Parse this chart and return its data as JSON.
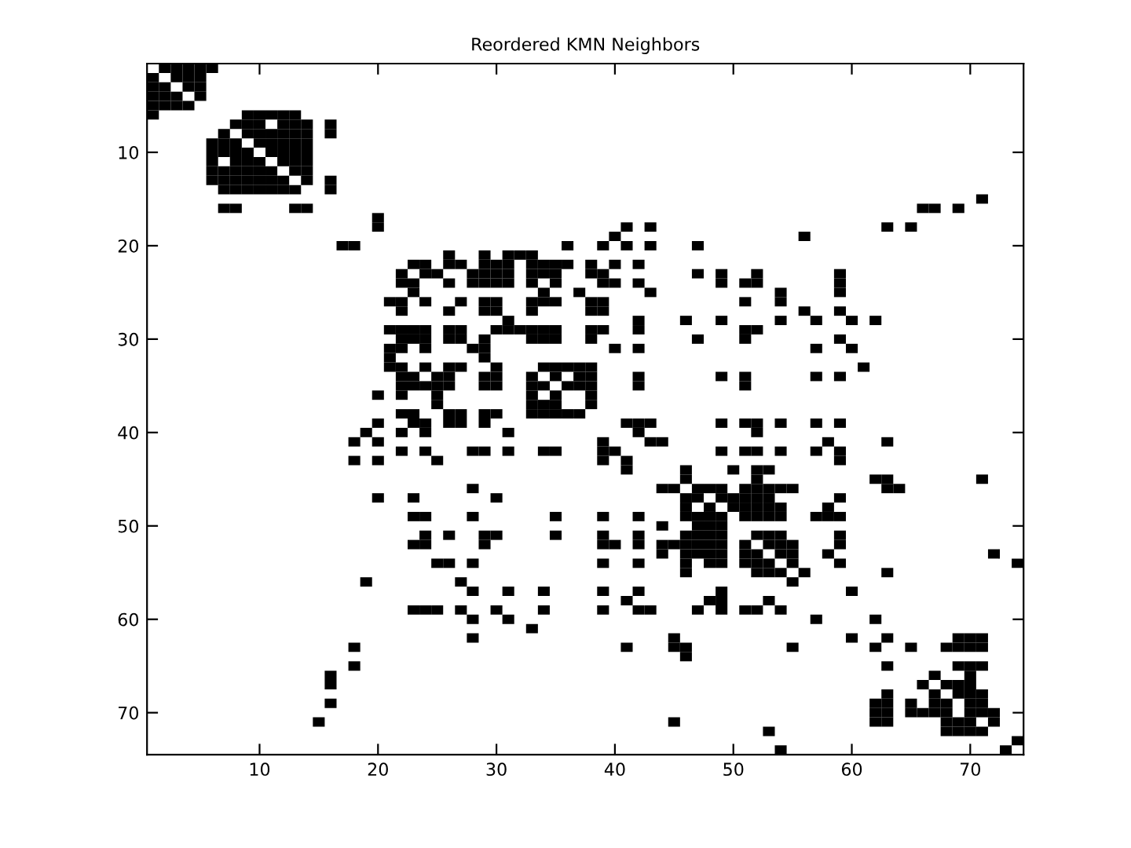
{
  "chart_data": {
    "type": "scatter",
    "title": "Reordered KMN Neighbors",
    "marker": "square",
    "xlim": [
      0.5,
      74.5
    ],
    "ylim": [
      74.5,
      0.5
    ],
    "xticks": [
      10,
      20,
      30,
      40,
      50,
      60,
      70
    ],
    "yticks": [
      10,
      20,
      30,
      40,
      50,
      60,
      70
    ],
    "series": [
      {
        "color": "#000000",
        "x": [
          2,
          3,
          4,
          5,
          6
        ],
        "values": [
          1,
          1,
          1,
          1,
          1
        ]
      },
      {
        "color": "#000000",
        "x": [
          1,
          3,
          4,
          5
        ],
        "values": [
          2,
          2,
          2,
          2
        ]
      },
      {
        "color": "#000000",
        "x": [
          1,
          2,
          4,
          5
        ],
        "values": [
          3,
          3,
          3,
          3
        ]
      },
      {
        "color": "#000000",
        "x": [
          1,
          2,
          3,
          5
        ],
        "values": [
          4,
          4,
          4,
          4
        ]
      },
      {
        "color": "#000000",
        "x": [
          1,
          2,
          3,
          4
        ],
        "values": [
          5,
          5,
          5,
          5
        ]
      },
      {
        "color": "#000000",
        "x": [
          1,
          9,
          10,
          11,
          12,
          13
        ],
        "values": [
          6,
          6,
          6,
          6,
          6,
          6
        ]
      },
      {
        "color": "#000000",
        "x": [
          8,
          9,
          10,
          12,
          13,
          14,
          16
        ],
        "values": [
          7,
          7,
          7,
          7,
          7,
          7,
          7
        ]
      },
      {
        "color": "#000000",
        "x": [
          7,
          9,
          10,
          11,
          12,
          13,
          14,
          16
        ],
        "values": [
          8,
          8,
          8,
          8,
          8,
          8,
          8,
          8
        ]
      },
      {
        "color": "#000000",
        "x": [
          6,
          7,
          8,
          10,
          11,
          12,
          13,
          14
        ],
        "values": [
          9,
          9,
          9,
          9,
          9,
          9,
          9,
          9
        ]
      },
      {
        "color": "#000000",
        "x": [
          6,
          7,
          8,
          9,
          11,
          12,
          13,
          14
        ],
        "values": [
          10,
          10,
          10,
          10,
          10,
          10,
          10,
          10
        ]
      },
      {
        "color": "#000000",
        "x": [
          6,
          8,
          9,
          10,
          12,
          13,
          14
        ],
        "values": [
          11,
          11,
          11,
          11,
          11,
          11,
          11
        ]
      },
      {
        "color": "#000000",
        "x": [
          6,
          7,
          8,
          9,
          10,
          11,
          13,
          14
        ],
        "values": [
          12,
          12,
          12,
          12,
          12,
          12,
          12,
          12
        ]
      },
      {
        "color": "#000000",
        "x": [
          6,
          7,
          8,
          9,
          10,
          11,
          12,
          14,
          16
        ],
        "values": [
          13,
          13,
          13,
          13,
          13,
          13,
          13,
          13,
          13
        ]
      },
      {
        "color": "#000000",
        "x": [
          7,
          8,
          9,
          10,
          11,
          12,
          13,
          16
        ],
        "values": [
          14,
          14,
          14,
          14,
          14,
          14,
          14,
          14
        ]
      },
      {
        "color": "#000000",
        "x": [
          71
        ],
        "values": [
          15
        ]
      },
      {
        "color": "#000000",
        "x": [
          7,
          8,
          13,
          14,
          66,
          67,
          69
        ],
        "values": [
          16,
          16,
          16,
          16,
          16,
          16,
          16
        ]
      },
      {
        "color": "#000000",
        "x": [
          20
        ],
        "values": [
          17
        ]
      },
      {
        "color": "#000000",
        "x": [
          20,
          41,
          43,
          63,
          65
        ],
        "values": [
          18,
          18,
          18,
          18,
          18
        ]
      },
      {
        "color": "#000000",
        "x": [
          40,
          56
        ],
        "values": [
          19,
          19
        ]
      },
      {
        "color": "#000000",
        "x": [
          17,
          18,
          36,
          39,
          41,
          43,
          47
        ],
        "values": [
          20,
          20,
          20,
          20,
          20,
          20,
          20
        ]
      },
      {
        "color": "#000000",
        "x": [
          26,
          29,
          31,
          32,
          33
        ],
        "values": [
          21,
          21,
          21,
          21,
          21
        ]
      },
      {
        "color": "#000000",
        "x": [
          23,
          24,
          26,
          27,
          29,
          30,
          31,
          33,
          34,
          35,
          36,
          38,
          40,
          42
        ],
        "values": [
          22,
          22,
          22,
          22,
          22,
          22,
          22,
          22,
          22,
          22,
          22,
          22,
          22,
          22
        ]
      },
      {
        "color": "#000000",
        "x": [
          22,
          24,
          25,
          28,
          29,
          30,
          31,
          33,
          34,
          35,
          38,
          39,
          47,
          49,
          52,
          59
        ],
        "values": [
          23,
          23,
          23,
          23,
          23,
          23,
          23,
          23,
          23,
          23,
          23,
          23,
          23,
          23,
          23,
          23
        ]
      },
      {
        "color": "#000000",
        "x": [
          22,
          23,
          26,
          28,
          29,
          30,
          31,
          33,
          35,
          39,
          40,
          42,
          49,
          51,
          52,
          59
        ],
        "values": [
          24,
          24,
          24,
          24,
          24,
          24,
          24,
          24,
          24,
          24,
          24,
          24,
          24,
          24,
          24,
          24
        ]
      },
      {
        "color": "#000000",
        "x": [
          23,
          34,
          37,
          43,
          54,
          59
        ],
        "values": [
          25,
          25,
          25,
          25,
          25,
          25
        ]
      },
      {
        "color": "#000000",
        "x": [
          21,
          22,
          24,
          27,
          29,
          30,
          33,
          34,
          35,
          38,
          39,
          51,
          54
        ],
        "values": [
          26,
          26,
          26,
          26,
          26,
          26,
          26,
          26,
          26,
          26,
          26,
          26,
          26
        ]
      },
      {
        "color": "#000000",
        "x": [
          22,
          26,
          29,
          30,
          33,
          38,
          39,
          56,
          59
        ],
        "values": [
          27,
          27,
          27,
          27,
          27,
          27,
          27,
          27,
          27
        ]
      },
      {
        "color": "#000000",
        "x": [
          31,
          42,
          46,
          49,
          54,
          57,
          60,
          62
        ],
        "values": [
          28,
          28,
          28,
          28,
          28,
          28,
          28,
          28
        ]
      },
      {
        "color": "#000000",
        "x": [
          21,
          22,
          23,
          24,
          26,
          27,
          30,
          31,
          32,
          33,
          34,
          35,
          38,
          39,
          42,
          51,
          52
        ],
        "values": [
          29,
          29,
          29,
          29,
          29,
          29,
          29,
          29,
          29,
          29,
          29,
          29,
          29,
          29,
          29,
          29,
          29
        ]
      },
      {
        "color": "#000000",
        "x": [
          22,
          23,
          24,
          26,
          27,
          29,
          33,
          34,
          35,
          38,
          47,
          51,
          59
        ],
        "values": [
          30,
          30,
          30,
          30,
          30,
          30,
          30,
          30,
          30,
          30,
          30,
          30,
          30
        ]
      },
      {
        "color": "#000000",
        "x": [
          21,
          22,
          24,
          28,
          29,
          40,
          42,
          57,
          60
        ],
        "values": [
          31,
          31,
          31,
          31,
          31,
          31,
          31,
          31,
          31
        ]
      },
      {
        "color": "#000000",
        "x": [
          21,
          29
        ],
        "values": [
          32,
          32
        ]
      },
      {
        "color": "#000000",
        "x": [
          21,
          22,
          24,
          26,
          27,
          30,
          34,
          35,
          36,
          37,
          38,
          61
        ],
        "values": [
          33,
          33,
          33,
          33,
          33,
          33,
          33,
          33,
          33,
          33,
          33,
          33
        ]
      },
      {
        "color": "#000000",
        "x": [
          22,
          23,
          25,
          26,
          29,
          30,
          33,
          35,
          37,
          38,
          42,
          49,
          51,
          57,
          59
        ],
        "values": [
          34,
          34,
          34,
          34,
          34,
          34,
          34,
          34,
          34,
          34,
          34,
          34,
          34,
          34,
          34
        ]
      },
      {
        "color": "#000000",
        "x": [
          22,
          23,
          24,
          25,
          26,
          29,
          30,
          33,
          34,
          36,
          37,
          38,
          42,
          51
        ],
        "values": [
          35,
          35,
          35,
          35,
          35,
          35,
          35,
          35,
          35,
          35,
          35,
          35,
          35,
          35
        ]
      },
      {
        "color": "#000000",
        "x": [
          20,
          22,
          25,
          33,
          35,
          38
        ],
        "values": [
          36,
          36,
          36,
          36,
          36,
          36
        ]
      },
      {
        "color": "#000000",
        "x": [
          25,
          33,
          34,
          35,
          38
        ],
        "values": [
          37,
          37,
          37,
          37,
          37
        ]
      },
      {
        "color": "#000000",
        "x": [
          22,
          23,
          26,
          27,
          29,
          30,
          33,
          34,
          35,
          36,
          37
        ],
        "values": [
          38,
          38,
          38,
          38,
          38,
          38,
          38,
          38,
          38,
          38,
          38
        ]
      },
      {
        "color": "#000000",
        "x": [
          20,
          23,
          24,
          26,
          27,
          29,
          41,
          42,
          43,
          49,
          51,
          52,
          54,
          57,
          59
        ],
        "values": [
          39,
          39,
          39,
          39,
          39,
          39,
          39,
          39,
          39,
          39,
          39,
          39,
          39,
          39,
          39
        ]
      },
      {
        "color": "#000000",
        "x": [
          19,
          22,
          24,
          31,
          42,
          52
        ],
        "values": [
          40,
          40,
          40,
          40,
          40,
          40
        ]
      },
      {
        "color": "#000000",
        "x": [
          18,
          20,
          39,
          43,
          44,
          58,
          63
        ],
        "values": [
          41,
          41,
          41,
          41,
          41,
          41,
          41
        ]
      },
      {
        "color": "#000000",
        "x": [
          22,
          24,
          28,
          29,
          31,
          34,
          35,
          39,
          40,
          49,
          51,
          52,
          54,
          57,
          59
        ],
        "values": [
          42,
          42,
          42,
          42,
          42,
          42,
          42,
          42,
          42,
          42,
          42,
          42,
          42,
          42,
          42
        ]
      },
      {
        "color": "#000000",
        "x": [
          18,
          20,
          25,
          39,
          41,
          59
        ],
        "values": [
          43,
          43,
          43,
          43,
          43,
          43
        ]
      },
      {
        "color": "#000000",
        "x": [
          41,
          46,
          50,
          52,
          53
        ],
        "values": [
          44,
          44,
          44,
          44,
          44
        ]
      },
      {
        "color": "#000000",
        "x": [
          46,
          52,
          62,
          63,
          71
        ],
        "values": [
          45,
          45,
          45,
          45,
          45
        ]
      },
      {
        "color": "#000000",
        "x": [
          28,
          44,
          45,
          47,
          48,
          49,
          51,
          52,
          53,
          54,
          55,
          63,
          64
        ],
        "values": [
          46,
          46,
          46,
          46,
          46,
          46,
          46,
          46,
          46,
          46,
          46,
          46,
          46
        ]
      },
      {
        "color": "#000000",
        "x": [
          20,
          23,
          30,
          46,
          47,
          49,
          50,
          51,
          52,
          53,
          59
        ],
        "values": [
          47,
          47,
          47,
          47,
          47,
          47,
          47,
          47,
          47,
          47,
          47
        ]
      },
      {
        "color": "#000000",
        "x": [
          46,
          48,
          50,
          51,
          52,
          53,
          54,
          58
        ],
        "values": [
          48,
          48,
          48,
          48,
          48,
          48,
          48,
          48
        ]
      },
      {
        "color": "#000000",
        "x": [
          23,
          24,
          28,
          35,
          39,
          42,
          46,
          47,
          48,
          49,
          51,
          52,
          53,
          54,
          57,
          58,
          59
        ],
        "values": [
          49,
          49,
          49,
          49,
          49,
          49,
          49,
          49,
          49,
          49,
          49,
          49,
          49,
          49,
          49,
          49,
          49
        ]
      },
      {
        "color": "#000000",
        "x": [
          44,
          47,
          48,
          49
        ],
        "values": [
          50,
          50,
          50,
          50
        ]
      },
      {
        "color": "#000000",
        "x": [
          24,
          26,
          29,
          30,
          35,
          39,
          42,
          46,
          47,
          48,
          49,
          52,
          53,
          54,
          59
        ],
        "values": [
          51,
          51,
          51,
          51,
          51,
          51,
          51,
          51,
          51,
          51,
          51,
          51,
          51,
          51,
          51
        ]
      },
      {
        "color": "#000000",
        "x": [
          23,
          24,
          29,
          39,
          40,
          42,
          44,
          45,
          46,
          47,
          48,
          49,
          51,
          53,
          54,
          55,
          59
        ],
        "values": [
          52,
          52,
          52,
          52,
          52,
          52,
          52,
          52,
          52,
          52,
          52,
          52,
          52,
          52,
          52,
          52,
          52
        ]
      },
      {
        "color": "#000000",
        "x": [
          44,
          46,
          47,
          48,
          49,
          51,
          52,
          54,
          55,
          58,
          72
        ],
        "values": [
          53,
          53,
          53,
          53,
          53,
          53,
          53,
          53,
          53,
          53,
          53
        ]
      },
      {
        "color": "#000000",
        "x": [
          25,
          26,
          28,
          39,
          42,
          46,
          48,
          49,
          51,
          52,
          53,
          55,
          59,
          74
        ],
        "values": [
          54,
          54,
          54,
          54,
          54,
          54,
          54,
          54,
          54,
          54,
          54,
          54,
          54,
          54
        ]
      },
      {
        "color": "#000000",
        "x": [
          46,
          52,
          53,
          54,
          56,
          63
        ],
        "values": [
          55,
          55,
          55,
          55,
          55,
          55
        ]
      },
      {
        "color": "#000000",
        "x": [
          19,
          27,
          55
        ],
        "values": [
          56,
          56,
          56
        ]
      },
      {
        "color": "#000000",
        "x": [
          28,
          31,
          34,
          39,
          42,
          49,
          60
        ],
        "values": [
          57,
          57,
          57,
          57,
          57,
          57,
          57
        ]
      },
      {
        "color": "#000000",
        "x": [
          41,
          48,
          49,
          53
        ],
        "values": [
          58,
          58,
          58,
          58
        ]
      },
      {
        "color": "#000000",
        "x": [
          23,
          24,
          25,
          27,
          30,
          34,
          39,
          42,
          43,
          47,
          49,
          51,
          52,
          54
        ],
        "values": [
          59,
          59,
          59,
          59,
          59,
          59,
          59,
          59,
          59,
          59,
          59,
          59,
          59,
          59
        ]
      },
      {
        "color": "#000000",
        "x": [
          28,
          31,
          57,
          62
        ],
        "values": [
          60,
          60,
          60,
          60
        ]
      },
      {
        "color": "#000000",
        "x": [
          33
        ],
        "values": [
          61
        ]
      },
      {
        "color": "#000000",
        "x": [
          28,
          45,
          60,
          63,
          69,
          70,
          71
        ],
        "values": [
          62,
          62,
          62,
          62,
          62,
          62,
          62
        ]
      },
      {
        "color": "#000000",
        "x": [
          18,
          41,
          45,
          46,
          55,
          62,
          65,
          68,
          69,
          70,
          71
        ],
        "values": [
          63,
          63,
          63,
          63,
          63,
          63,
          63,
          63,
          63,
          63,
          63
        ]
      },
      {
        "color": "#000000",
        "x": [
          46
        ],
        "values": [
          64
        ]
      },
      {
        "color": "#000000",
        "x": [
          18,
          63,
          69,
          70,
          71
        ],
        "values": [
          65,
          65,
          65,
          65,
          65
        ]
      },
      {
        "color": "#000000",
        "x": [
          16,
          67,
          70
        ],
        "values": [
          66,
          66,
          66
        ]
      },
      {
        "color": "#000000",
        "x": [
          16,
          66,
          68,
          69,
          70
        ],
        "values": [
          67,
          67,
          67,
          67,
          67
        ]
      },
      {
        "color": "#000000",
        "x": [
          63,
          67,
          69,
          70,
          71
        ],
        "values": [
          68,
          68,
          68,
          68,
          68
        ]
      },
      {
        "color": "#000000",
        "x": [
          16,
          62,
          63,
          65,
          67,
          68,
          70,
          71
        ],
        "values": [
          69,
          69,
          69,
          69,
          69,
          69,
          69,
          69
        ]
      },
      {
        "color": "#000000",
        "x": [
          62,
          63,
          65,
          66,
          67,
          68,
          70,
          71,
          72
        ],
        "values": [
          70,
          70,
          70,
          70,
          70,
          70,
          70,
          70,
          70
        ]
      },
      {
        "color": "#000000",
        "x": [
          15,
          45,
          62,
          63,
          68,
          69,
          70,
          72
        ],
        "values": [
          71,
          71,
          71,
          71,
          71,
          71,
          71,
          71
        ]
      },
      {
        "color": "#000000",
        "x": [
          53,
          68,
          69,
          70,
          71
        ],
        "values": [
          72,
          72,
          72,
          72,
          72
        ]
      },
      {
        "color": "#000000",
        "x": [
          74
        ],
        "values": [
          73
        ]
      },
      {
        "color": "#000000",
        "x": [
          54,
          73
        ],
        "values": [
          74,
          74
        ]
      }
    ]
  }
}
